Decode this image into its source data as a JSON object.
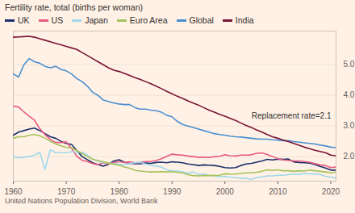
{
  "chart_data": {
    "type": "line",
    "title": "Fertility rate, total (births per woman)",
    "source": "United Nations Population Division, World Bank",
    "annotations": [
      "Replacement rate=2.1"
    ],
    "legend": "top",
    "grid": true,
    "x": [
      1960,
      1961,
      1962,
      1963,
      1964,
      1965,
      1966,
      1967,
      1968,
      1969,
      1970,
      1971,
      1972,
      1973,
      1974,
      1975,
      1976,
      1977,
      1978,
      1979,
      1980,
      1981,
      1982,
      1983,
      1984,
      1985,
      1986,
      1987,
      1988,
      1989,
      1990,
      1991,
      1992,
      1993,
      1994,
      1995,
      1996,
      1997,
      1998,
      1999,
      2000,
      2001,
      2002,
      2003,
      2004,
      2005,
      2006,
      2007,
      2008,
      2009,
      2010,
      2011,
      2012,
      2013,
      2014,
      2015,
      2016,
      2017,
      2018,
      2019,
      2020,
      2021
    ],
    "xlim": [
      1960,
      2021
    ],
    "xticks": [
      1960,
      1970,
      1980,
      1990,
      2000,
      2010,
      2020
    ],
    "ylim": [
      1.2,
      6.1
    ],
    "yticks": [
      2,
      3,
      4,
      5
    ],
    "series": [
      {
        "name": "UK",
        "color": "#1a2f6b",
        "values": [
          2.7,
          2.8,
          2.85,
          2.9,
          2.93,
          2.85,
          2.75,
          2.65,
          2.6,
          2.5,
          2.43,
          2.4,
          2.2,
          2.0,
          1.9,
          1.8,
          1.74,
          1.69,
          1.75,
          1.86,
          1.9,
          1.82,
          1.78,
          1.77,
          1.77,
          1.79,
          1.78,
          1.81,
          1.82,
          1.8,
          1.83,
          1.82,
          1.8,
          1.76,
          1.74,
          1.71,
          1.73,
          1.72,
          1.71,
          1.68,
          1.64,
          1.63,
          1.64,
          1.71,
          1.76,
          1.78,
          1.82,
          1.86,
          1.91,
          1.89,
          1.92,
          1.91,
          1.92,
          1.83,
          1.81,
          1.8,
          1.79,
          1.74,
          1.68,
          1.63,
          1.56,
          1.56
        ]
      },
      {
        "name": "US",
        "color": "#e85a80",
        "values": [
          3.65,
          3.62,
          3.46,
          3.32,
          3.19,
          2.91,
          2.72,
          2.56,
          2.46,
          2.46,
          2.48,
          2.27,
          2.01,
          1.88,
          1.84,
          1.77,
          1.74,
          1.79,
          1.76,
          1.81,
          1.84,
          1.81,
          1.83,
          1.8,
          1.81,
          1.84,
          1.84,
          1.87,
          1.93,
          2.01,
          2.08,
          2.06,
          2.05,
          2.02,
          2.0,
          1.98,
          1.98,
          1.97,
          2.0,
          2.01,
          2.06,
          2.03,
          2.02,
          2.05,
          2.05,
          2.06,
          2.11,
          2.12,
          2.07,
          2.0,
          1.93,
          1.89,
          1.88,
          1.86,
          1.86,
          1.84,
          1.82,
          1.77,
          1.73,
          1.71,
          1.64,
          1.66
        ]
      },
      {
        "name": "Japan",
        "color": "#9fd8ec",
        "values": [
          2.0,
          1.96,
          1.98,
          2.0,
          2.05,
          2.14,
          1.58,
          2.23,
          2.13,
          2.13,
          2.13,
          2.16,
          2.14,
          2.14,
          2.05,
          1.91,
          1.85,
          1.8,
          1.79,
          1.77,
          1.75,
          1.74,
          1.77,
          1.8,
          1.81,
          1.76,
          1.72,
          1.69,
          1.66,
          1.57,
          1.54,
          1.53,
          1.5,
          1.46,
          1.5,
          1.42,
          1.43,
          1.39,
          1.38,
          1.34,
          1.36,
          1.33,
          1.32,
          1.29,
          1.29,
          1.26,
          1.32,
          1.34,
          1.37,
          1.37,
          1.39,
          1.39,
          1.41,
          1.43,
          1.42,
          1.45,
          1.44,
          1.43,
          1.42,
          1.36,
          1.33,
          1.3
        ]
      },
      {
        "name": "Euro Area",
        "color": "#a6c25a",
        "values": [
          2.6,
          2.65,
          2.65,
          2.7,
          2.72,
          2.68,
          2.6,
          2.5,
          2.42,
          2.35,
          2.3,
          2.28,
          2.2,
          2.1,
          2.0,
          1.92,
          1.87,
          1.83,
          1.79,
          1.75,
          1.72,
          1.66,
          1.62,
          1.55,
          1.53,
          1.51,
          1.5,
          1.5,
          1.51,
          1.5,
          1.51,
          1.49,
          1.47,
          1.41,
          1.38,
          1.37,
          1.38,
          1.38,
          1.38,
          1.39,
          1.44,
          1.43,
          1.43,
          1.45,
          1.47,
          1.47,
          1.49,
          1.52,
          1.57,
          1.55,
          1.57,
          1.54,
          1.54,
          1.52,
          1.54,
          1.53,
          1.56,
          1.54,
          1.52,
          1.5,
          1.47,
          1.5
        ]
      },
      {
        "name": "Global",
        "color": "#4a8fd1",
        "values": [
          4.7,
          4.6,
          5.0,
          5.2,
          5.1,
          5.05,
          4.95,
          4.9,
          4.95,
          4.85,
          4.8,
          4.7,
          4.55,
          4.45,
          4.3,
          4.1,
          4.0,
          3.85,
          3.8,
          3.75,
          3.72,
          3.7,
          3.7,
          3.6,
          3.55,
          3.55,
          3.52,
          3.5,
          3.45,
          3.35,
          3.3,
          3.15,
          3.05,
          3.0,
          2.95,
          2.9,
          2.85,
          2.8,
          2.75,
          2.72,
          2.7,
          2.67,
          2.65,
          2.64,
          2.62,
          2.6,
          2.58,
          2.57,
          2.57,
          2.55,
          2.54,
          2.52,
          2.52,
          2.49,
          2.47,
          2.45,
          2.43,
          2.41,
          2.38,
          2.35,
          2.31,
          2.29
        ]
      },
      {
        "name": "India",
        "color": "#7a1436",
        "values": [
          5.9,
          5.91,
          5.92,
          5.93,
          5.9,
          5.85,
          5.8,
          5.75,
          5.7,
          5.65,
          5.6,
          5.55,
          5.5,
          5.4,
          5.3,
          5.2,
          5.1,
          5.0,
          4.9,
          4.82,
          4.78,
          4.72,
          4.65,
          4.58,
          4.52,
          4.45,
          4.38,
          4.3,
          4.22,
          4.13,
          4.05,
          3.97,
          3.9,
          3.82,
          3.75,
          3.68,
          3.6,
          3.52,
          3.45,
          3.38,
          3.32,
          3.25,
          3.18,
          3.1,
          3.02,
          2.95,
          2.87,
          2.8,
          2.72,
          2.65,
          2.6,
          2.54,
          2.49,
          2.43,
          2.37,
          2.31,
          2.26,
          2.21,
          2.17,
          2.13,
          2.05,
          2.03
        ]
      }
    ]
  }
}
